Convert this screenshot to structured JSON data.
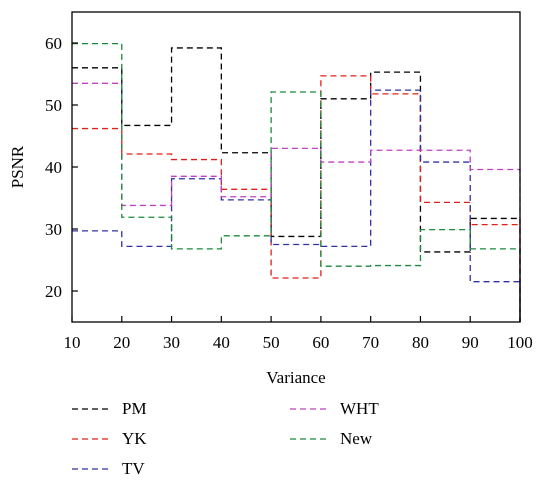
{
  "chart_data": {
    "type": "line",
    "step": "post",
    "title": "",
    "xlabel": "Variance",
    "ylabel": "PSNR",
    "xlim": [
      10,
      100
    ],
    "ylim": [
      15,
      65
    ],
    "x_ticks": [
      10,
      20,
      30,
      40,
      50,
      60,
      70,
      80,
      90,
      100
    ],
    "y_ticks": [
      20,
      30,
      40,
      50,
      60
    ],
    "grid": false,
    "line_style": "dashed",
    "legend_position": "below-plot",
    "x": [
      10,
      20,
      30,
      40,
      50,
      60,
      70,
      80,
      90
    ],
    "series": [
      {
        "name": "PM",
        "color": "#000000",
        "values": [
          56.0,
          46.7,
          59.2,
          42.3,
          28.8,
          51.0,
          55.3,
          26.3,
          31.7
        ]
      },
      {
        "name": "YK",
        "color": "#e0201a",
        "values": [
          46.2,
          42.1,
          41.2,
          36.4,
          22.1,
          54.7,
          51.8,
          34.3,
          30.7
        ]
      },
      {
        "name": "TV",
        "color": "#3030a8",
        "values": [
          29.7,
          27.2,
          38.1,
          34.7,
          27.5,
          27.2,
          52.4,
          40.8,
          21.5
        ]
      },
      {
        "name": "WHT",
        "color": "#c040c0",
        "values": [
          53.5,
          33.8,
          38.5,
          35.2,
          43.0,
          40.8,
          42.7,
          42.7,
          39.6
        ]
      },
      {
        "name": "New",
        "color": "#1a8a3a",
        "values": [
          59.9,
          31.9,
          26.8,
          28.9,
          52.1,
          24.0,
          24.1,
          29.9,
          26.8
        ]
      }
    ],
    "legend": [
      {
        "label": "PM",
        "color": "#000000"
      },
      {
        "label": "YK",
        "color": "#e0201a"
      },
      {
        "label": "TV",
        "color": "#3030a8"
      },
      {
        "label": "WHT",
        "color": "#c040c0"
      },
      {
        "label": "New",
        "color": "#1a8a3a"
      }
    ]
  }
}
